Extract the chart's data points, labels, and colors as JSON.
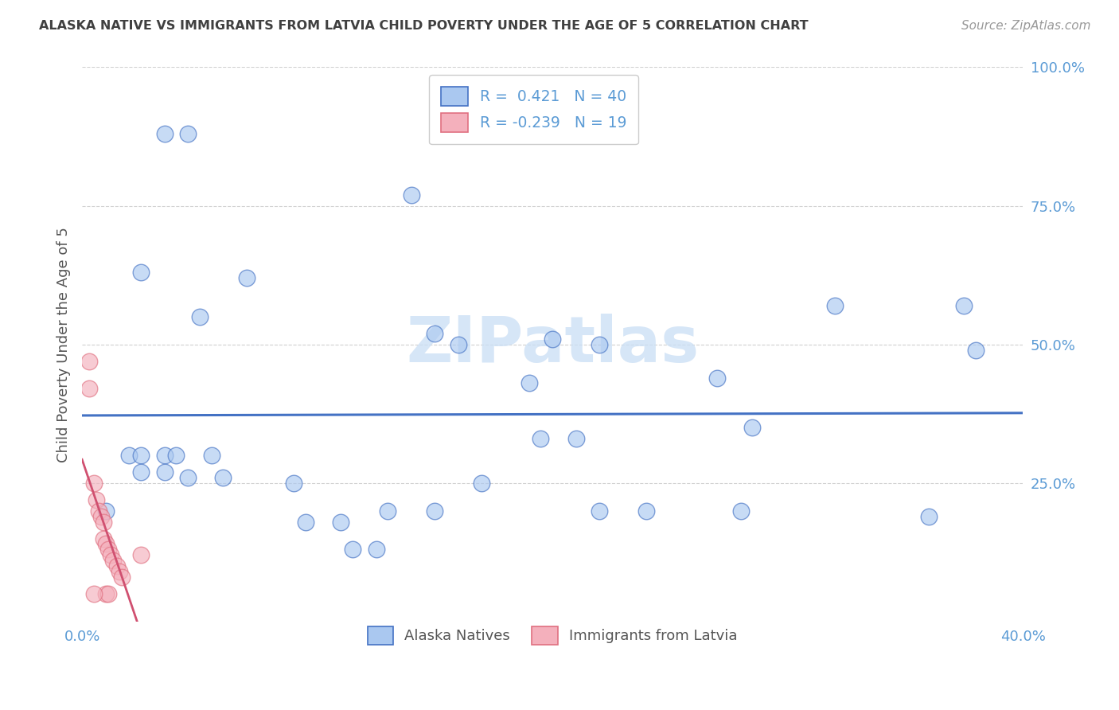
{
  "title": "ALASKA NATIVE VS IMMIGRANTS FROM LATVIA CHILD POVERTY UNDER THE AGE OF 5 CORRELATION CHART",
  "source": "Source: ZipAtlas.com",
  "ylabel": "Child Poverty Under the Age of 5",
  "xlim": [
    0.0,
    40.0
  ],
  "ylim": [
    0.0,
    100.0
  ],
  "ytick_vals": [
    25,
    50,
    75,
    100
  ],
  "ytick_labels": [
    "25.0%",
    "50.0%",
    "75.0%",
    "100.0%"
  ],
  "xtick_vals": [
    0,
    5,
    10,
    15,
    20,
    25,
    30,
    35,
    40
  ],
  "xtick_labels": [
    "0.0%",
    "",
    "",
    "",
    "",
    "",
    "",
    "",
    "40.0%"
  ],
  "alaska_points": [
    [
      3.5,
      88
    ],
    [
      4.5,
      88
    ],
    [
      14.0,
      77
    ],
    [
      2.5,
      63
    ],
    [
      7.0,
      62
    ],
    [
      5.0,
      55
    ],
    [
      15.0,
      52
    ],
    [
      20.0,
      51
    ],
    [
      16.0,
      50
    ],
    [
      22.0,
      50
    ],
    [
      37.5,
      57
    ],
    [
      27.0,
      44
    ],
    [
      19.0,
      43
    ],
    [
      38.0,
      49
    ],
    [
      32.0,
      57
    ],
    [
      22.0,
      20
    ],
    [
      24.0,
      20
    ],
    [
      28.0,
      20
    ],
    [
      2.0,
      30
    ],
    [
      2.5,
      30
    ],
    [
      3.5,
      30
    ],
    [
      4.0,
      30
    ],
    [
      5.5,
      30
    ],
    [
      2.5,
      27
    ],
    [
      3.5,
      27
    ],
    [
      4.5,
      26
    ],
    [
      6.0,
      26
    ],
    [
      9.0,
      25
    ],
    [
      13.0,
      20
    ],
    [
      15.0,
      20
    ],
    [
      9.5,
      18
    ],
    [
      11.0,
      18
    ],
    [
      36.0,
      19
    ],
    [
      11.5,
      13
    ],
    [
      12.5,
      13
    ],
    [
      19.5,
      33
    ],
    [
      21.0,
      33
    ],
    [
      1.0,
      20
    ],
    [
      17.0,
      25
    ],
    [
      28.5,
      35
    ]
  ],
  "latvia_points": [
    [
      0.3,
      47
    ],
    [
      0.3,
      42
    ],
    [
      0.5,
      25
    ],
    [
      0.6,
      22
    ],
    [
      0.7,
      20
    ],
    [
      0.8,
      19
    ],
    [
      0.9,
      18
    ],
    [
      0.9,
      15
    ],
    [
      1.0,
      14
    ],
    [
      1.1,
      13
    ],
    [
      1.2,
      12
    ],
    [
      1.3,
      11
    ],
    [
      1.5,
      10
    ],
    [
      1.6,
      9
    ],
    [
      1.7,
      8
    ],
    [
      2.5,
      12
    ],
    [
      1.0,
      5
    ],
    [
      1.1,
      5
    ],
    [
      0.5,
      5
    ]
  ],
  "blue_scatter_face": "#aac8f0",
  "blue_scatter_edge": "#4472c4",
  "pink_scatter_face": "#f4b0bc",
  "pink_scatter_edge": "#e07080",
  "blue_line_color": "#4472c4",
  "pink_line_color": "#d05070",
  "watermark_text": "ZIPatlas",
  "watermark_color": "#cce0f5",
  "title_color": "#404040",
  "axis_tick_color": "#5b9bd5",
  "ylabel_color": "#555555",
  "grid_color": "#d0d0d0",
  "legend1_labels": [
    "R =  0.421   N = 40",
    "R = -0.239   N = 19"
  ],
  "legend2_labels": [
    "Alaska Natives",
    "Immigrants from Latvia"
  ],
  "source_text": "Source: ZipAtlas.com"
}
